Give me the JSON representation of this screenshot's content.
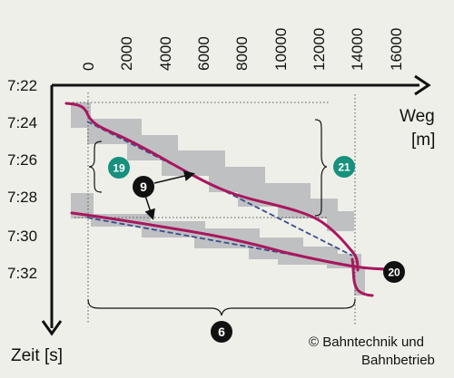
{
  "x_axis": {
    "title_line1": "Weg",
    "title_line2": "[m]",
    "ticks": [
      "0",
      "2000",
      "4000",
      "6000",
      "8000",
      "10000",
      "12000",
      "14000",
      "16000"
    ]
  },
  "y_axis": {
    "title": "Zeit [s]",
    "ticks": [
      "7:22",
      "7:24",
      "7:26",
      "7:28",
      "7:30",
      "7:32"
    ]
  },
  "badges": {
    "b6": "6",
    "b9": "9",
    "b19": "19",
    "b20": "20",
    "b21": "21"
  },
  "copyright_line1": "© Bahntechnik und",
  "copyright_line2": "Bahnbetrieb",
  "colors": {
    "trajectory": "#a8175e",
    "schedule": "#3a4e8c",
    "tolerance_band": "#bfc0c2",
    "teal_badge": "#17907e",
    "black_badge": "#111111",
    "background": "#efefe9"
  }
}
